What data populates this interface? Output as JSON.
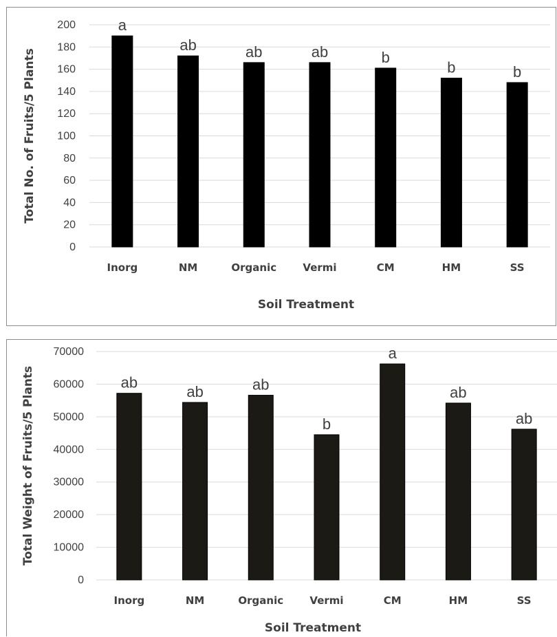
{
  "chart_data": [
    {
      "type": "bar",
      "categories": [
        "Inorg",
        "NM",
        "Organic",
        "Vermi",
        "CM",
        "HM",
        "SS"
      ],
      "values": [
        190,
        172,
        166,
        166,
        161,
        152,
        148
      ],
      "annotations": [
        "a",
        "ab",
        "ab",
        "ab",
        "b",
        "b",
        "b"
      ],
      "xlabel": "Soil Treatment",
      "ylabel": "Total No. of Fruits/5 Plants",
      "ylim": [
        0,
        200
      ],
      "yticks": [
        "0",
        "20",
        "40",
        "60",
        "80",
        "100",
        "120",
        "140",
        "160",
        "180",
        "200"
      ],
      "grid": true,
      "bar_color": "#000000"
    },
    {
      "type": "bar",
      "categories": [
        "Inorg",
        "NM",
        "Organic",
        "Vermi",
        "CM",
        "HM",
        "SS"
      ],
      "values": [
        57200,
        54400,
        56600,
        44500,
        66200,
        54200,
        46200
      ],
      "annotations": [
        "ab",
        "ab",
        "ab",
        "b",
        "a",
        "ab",
        "ab"
      ],
      "xlabel": "Soil Treatment",
      "ylabel": "Total Weight of Fruits/5 Plants",
      "ylim": [
        0,
        70000
      ],
      "yticks": [
        "0",
        "10000",
        "20000",
        "30000",
        "40000",
        "50000",
        "60000",
        "70000"
      ],
      "grid": true,
      "bar_color": "#1c1a14"
    }
  ]
}
